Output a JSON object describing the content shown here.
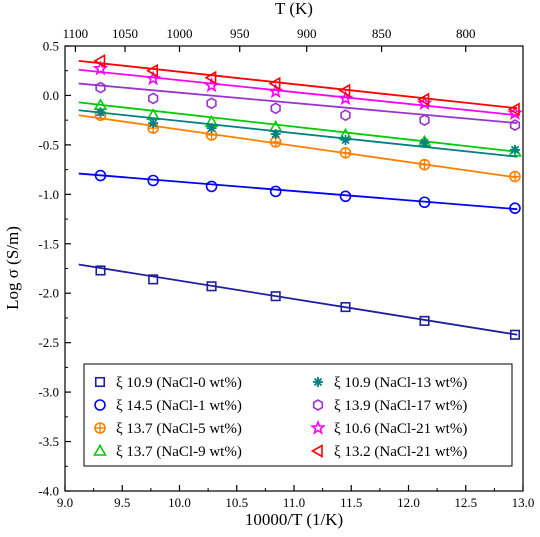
{
  "chart_data": {
    "type": "scatter",
    "xlabel": "10000/T (1/K)",
    "ylabel": "Log σ (S/m)",
    "top_xlabel": "T (K)",
    "xlim": [
      9.0,
      13.0
    ],
    "ylim": [
      -4.0,
      0.5
    ],
    "x_ticks": [
      "9.0",
      "9.5",
      "10.0",
      "10.5",
      "11.0",
      "11.5",
      "12.0",
      "12.5",
      "13.0"
    ],
    "y_ticks": [
      "0.5",
      "0.0",
      "-0.5",
      "-1.0",
      "-1.5",
      "-2.0",
      "-2.5",
      "-3.0",
      "-3.5",
      "-4.0"
    ],
    "top_ticks": [
      {
        "label": "1100",
        "x": 9.091
      },
      {
        "label": "1050",
        "x": 9.524
      },
      {
        "label": "1000",
        "x": 10.0
      },
      {
        "label": "950",
        "x": 10.526
      },
      {
        "label": "900",
        "x": 11.111
      },
      {
        "label": "850",
        "x": 11.765
      },
      {
        "label": "800",
        "x": 12.5
      }
    ],
    "grid": false,
    "legend_position": "bottom",
    "series": [
      {
        "name": "ξ 10.9 (NaCl-0 wt%)",
        "marker": "square",
        "color": "#1f1f9e",
        "x": [
          9.31,
          9.77,
          10.28,
          10.84,
          11.45,
          12.14,
          12.93
        ],
        "y": [
          -1.77,
          -1.86,
          -1.93,
          -2.03,
          -2.14,
          -2.28,
          -2.42
        ],
        "fit": {
          "x": [
            9.12,
            12.95
          ],
          "y": [
            -1.71,
            -2.42
          ]
        }
      },
      {
        "name": "ξ 14.5 (NaCl-1 wt%)",
        "marker": "circle",
        "color": "#0000ff",
        "x": [
          9.31,
          9.77,
          10.28,
          10.84,
          11.45,
          12.14,
          12.93
        ],
        "y": [
          -0.81,
          -0.86,
          -0.92,
          -0.97,
          -1.02,
          -1.08,
          -1.14
        ],
        "fit": {
          "x": [
            9.12,
            12.95
          ],
          "y": [
            -0.79,
            -1.15
          ]
        }
      },
      {
        "name": "ξ 13.7 (NaCl-5 wt%)",
        "marker": "circle-plus",
        "color": "#ff8000",
        "x": [
          9.31,
          9.77,
          10.28,
          10.84,
          11.45,
          12.14,
          12.93
        ],
        "y": [
          -0.2,
          -0.33,
          -0.4,
          -0.47,
          -0.58,
          -0.7,
          -0.82
        ],
        "fit": {
          "x": [
            9.12,
            12.95
          ],
          "y": [
            -0.2,
            -0.83
          ]
        }
      },
      {
        "name": "ξ 13.7 (NaCl-9 wt%)",
        "marker": "triangle-up",
        "color": "#00cc00",
        "x": [
          9.31,
          9.77,
          10.28,
          10.84,
          11.45,
          12.14,
          12.93
        ],
        "y": [
          -0.1,
          -0.2,
          -0.27,
          -0.32,
          -0.4,
          -0.47,
          -0.57
        ],
        "fit": {
          "x": [
            9.12,
            12.95
          ],
          "y": [
            -0.07,
            -0.57
          ]
        }
      },
      {
        "name": "ξ 10.9 (NaCl-13 wt%)",
        "marker": "asterisk",
        "color": "#008080",
        "x": [
          9.31,
          9.77,
          10.28,
          10.84,
          11.45,
          12.14,
          12.93
        ],
        "y": [
          -0.17,
          -0.28,
          -0.33,
          -0.39,
          -0.45,
          -0.48,
          -0.55
        ],
        "fit": {
          "x": [
            9.12,
            12.95
          ],
          "y": [
            -0.15,
            -0.62
          ]
        }
      },
      {
        "name": "ξ 13.9 (NaCl-17 wt%)",
        "marker": "hexagon",
        "color": "#9933cc",
        "x": [
          9.31,
          9.77,
          10.28,
          10.84,
          11.45,
          12.14,
          12.93
        ],
        "y": [
          0.08,
          -0.03,
          -0.08,
          -0.13,
          -0.2,
          -0.25,
          -0.3
        ],
        "fit": {
          "x": [
            9.12,
            12.95
          ],
          "y": [
            0.12,
            -0.28
          ]
        }
      },
      {
        "name": "ξ 10.6 (NaCl-21 wt%)",
        "marker": "star",
        "color": "#ff00ff",
        "x": [
          9.31,
          9.77,
          10.28,
          10.84,
          11.45,
          12.14,
          12.93
        ],
        "y": [
          0.27,
          0.17,
          0.1,
          0.04,
          -0.03,
          -0.08,
          -0.18
        ],
        "fit": {
          "x": [
            9.12,
            12.95
          ],
          "y": [
            0.26,
            -0.2
          ]
        }
      },
      {
        "name": "ξ 13.2 (NaCl-21 wt%)",
        "marker": "triangle-left",
        "color": "#ff0000",
        "x": [
          9.31,
          9.77,
          10.28,
          10.84,
          11.45,
          12.14,
          12.93
        ],
        "y": [
          0.35,
          0.25,
          0.18,
          0.12,
          0.05,
          -0.04,
          -0.14
        ],
        "fit": {
          "x": [
            9.12,
            12.95
          ],
          "y": [
            0.35,
            -0.13
          ]
        }
      }
    ]
  }
}
